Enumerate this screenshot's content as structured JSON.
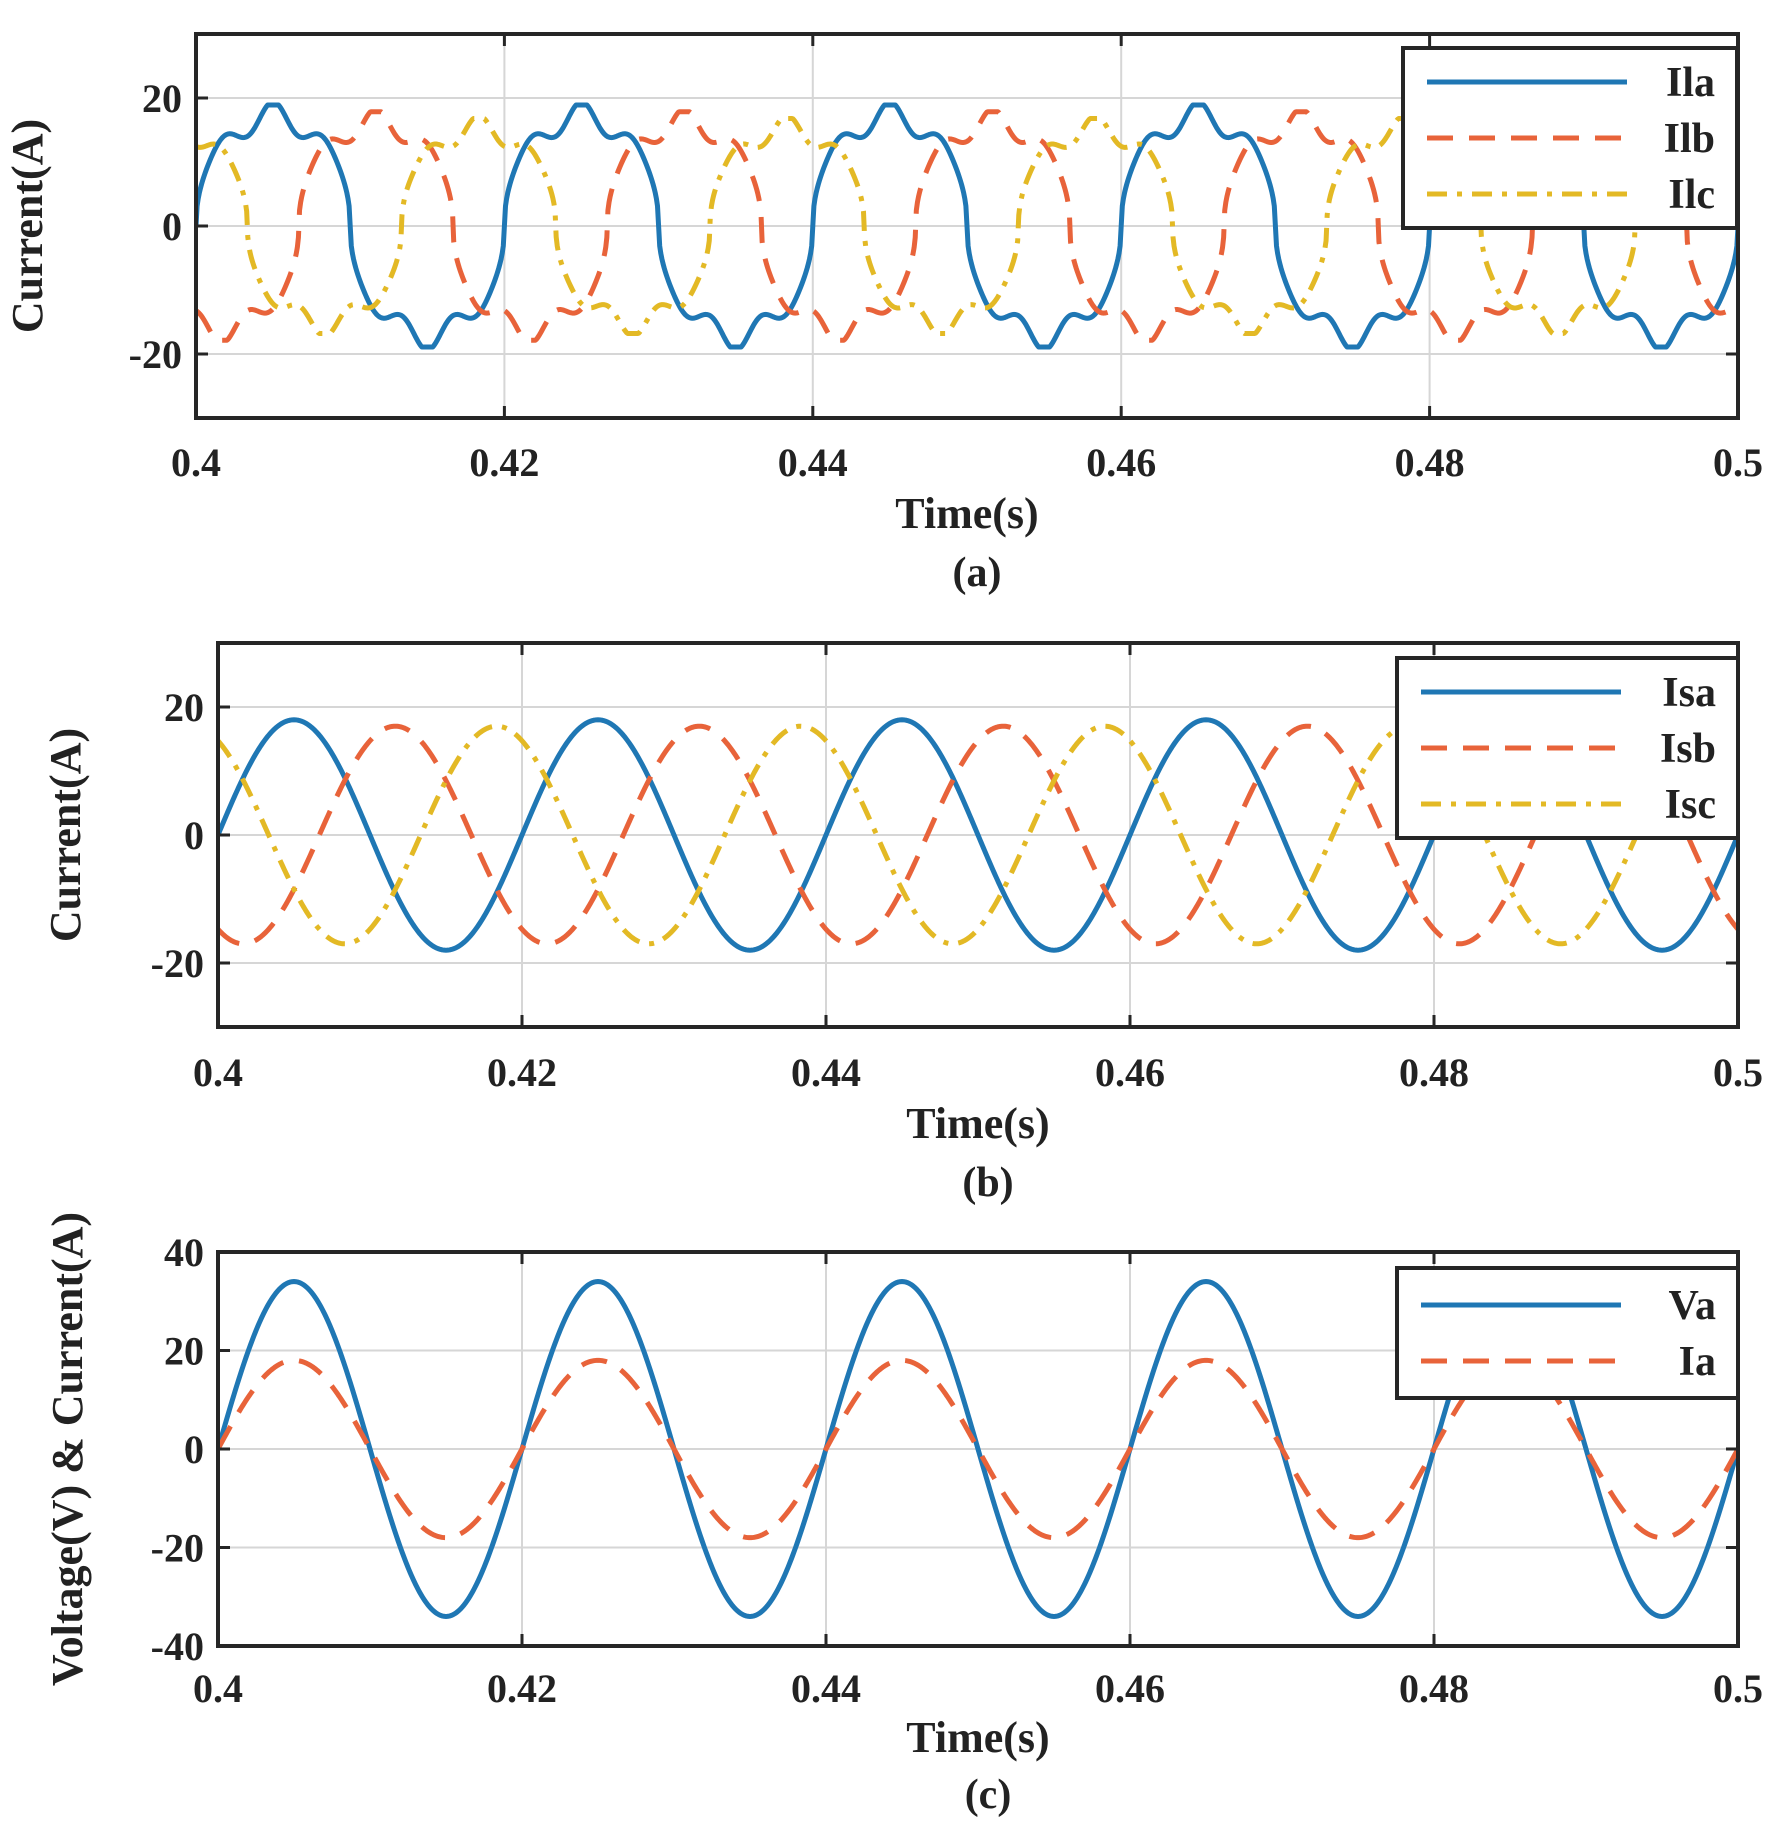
{
  "chart_data": [
    {
      "type": "line",
      "id": "a",
      "sublabel": "(a)",
      "xlabel": "Time(s)",
      "ylabel": "Current(A)",
      "xlim": [
        0.4,
        0.5
      ],
      "ylim": [
        -30,
        30
      ],
      "xticks": [
        0.4,
        0.42,
        0.44,
        0.46,
        0.48,
        0.5
      ],
      "xtick_labels": [
        "0.4",
        "0.42",
        "0.44",
        "0.46",
        "0.48",
        "0.5"
      ],
      "yticks": [
        -20,
        0,
        20
      ],
      "ytick_labels": [
        "-20",
        "0",
        "20"
      ],
      "grid": true,
      "legend_position": "top-right",
      "frequency_hz": 50,
      "waveform": "distorted nonlinear load current",
      "series": [
        {
          "name": "Ila",
          "amplitude": 18,
          "phase_deg": 0,
          "color": "#1f77b4",
          "dash": "solid"
        },
        {
          "name": "Ilb",
          "amplitude": 17,
          "phase_deg": -120,
          "color": "#e8633a",
          "dash": "dashed"
        },
        {
          "name": "Ilc",
          "amplitude": 16,
          "phase_deg": 120,
          "color": "#e3b925",
          "dash": "dashdot"
        }
      ]
    },
    {
      "type": "line",
      "id": "b",
      "sublabel": "(b)",
      "xlabel": "Time(s)",
      "ylabel": "Current(A)",
      "xlim": [
        0.4,
        0.5
      ],
      "ylim": [
        -30,
        30
      ],
      "xticks": [
        0.4,
        0.42,
        0.44,
        0.46,
        0.48,
        0.5
      ],
      "xtick_labels": [
        "0.4",
        "0.42",
        "0.44",
        "0.46",
        "0.48",
        "0.5"
      ],
      "yticks": [
        -20,
        0,
        20
      ],
      "ytick_labels": [
        "-20",
        "0",
        "20"
      ],
      "grid": true,
      "legend_position": "top-right",
      "frequency_hz": 50,
      "waveform": "sinusoidal",
      "series": [
        {
          "name": "Isa",
          "amplitude": 18,
          "phase_deg": 0,
          "color": "#1f77b4",
          "dash": "solid"
        },
        {
          "name": "Isb",
          "amplitude": 17,
          "phase_deg": -120,
          "color": "#e8633a",
          "dash": "dashed"
        },
        {
          "name": "Isc",
          "amplitude": 17,
          "phase_deg": 120,
          "color": "#e3b925",
          "dash": "dashdot"
        }
      ]
    },
    {
      "type": "line",
      "id": "c",
      "sublabel": "(c)",
      "xlabel": "Time(s)",
      "ylabel": "Voltage(V) & Current(A)",
      "xlim": [
        0.4,
        0.5
      ],
      "ylim": [
        -40,
        40
      ],
      "xticks": [
        0.4,
        0.42,
        0.44,
        0.46,
        0.48,
        0.5
      ],
      "xtick_labels": [
        "0.4",
        "0.42",
        "0.44",
        "0.46",
        "0.48",
        "0.5"
      ],
      "yticks": [
        -40,
        -20,
        0,
        20,
        40
      ],
      "ytick_labels": [
        "-40",
        "-20",
        "0",
        "20",
        "40"
      ],
      "grid": true,
      "legend_position": "top-right",
      "frequency_hz": 50,
      "waveform": "sinusoidal",
      "series": [
        {
          "name": "Va",
          "amplitude": 34,
          "phase_deg": 0,
          "color": "#1f77b4",
          "dash": "solid"
        },
        {
          "name": "Ia",
          "amplitude": 18,
          "phase_deg": 0,
          "color": "#e8633a",
          "dash": "dashed"
        }
      ]
    }
  ]
}
